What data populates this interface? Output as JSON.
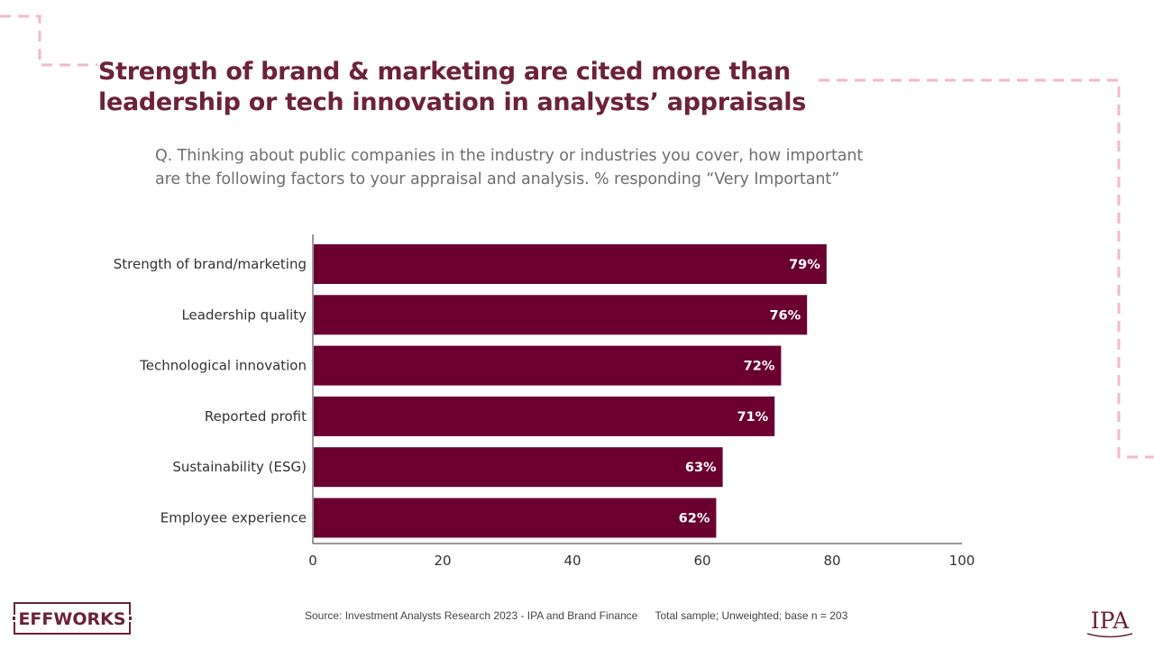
{
  "title": {
    "line1": "Strength of brand & marketing are cited more than",
    "line2": "leadership or tech innovation in analysts’ appraisals"
  },
  "question": {
    "line1": "Q. Thinking about public companies in the industry or industries you cover, how important",
    "line2": "are the following factors to your appraisal and analysis. % responding “Very Important”"
  },
  "chart_data": {
    "type": "bar",
    "orientation": "horizontal",
    "categories": [
      "Strength of brand/marketing",
      "Leadership quality",
      "Technological innovation",
      "Reported profit",
      "Sustainability (ESG)",
      "Employee experience"
    ],
    "values": [
      79,
      76,
      72,
      71,
      63,
      62
    ],
    "data_labels": [
      "79%",
      "76%",
      "72%",
      "71%",
      "63%",
      "62%"
    ],
    "xlim": [
      0,
      100
    ],
    "x_ticks": [
      0,
      20,
      40,
      60,
      80,
      100
    ],
    "bar_color": "#6b0030",
    "label_color": "#ffffff",
    "xlabel": "",
    "ylabel": "",
    "grid": false,
    "legend": "none"
  },
  "footer": {
    "source": "Source: Investment Analysts Research 2023  - IPA and Brand Finance",
    "sample": "Total sample;  Unweighted; base n = 203"
  },
  "logos": {
    "left": "EFFWORKS",
    "right": "IPA"
  },
  "colors": {
    "title": "#6c2239",
    "accent_pink": "#f4b9c7",
    "bar": "#6b0030",
    "text_grey": "#6f6f6f"
  }
}
